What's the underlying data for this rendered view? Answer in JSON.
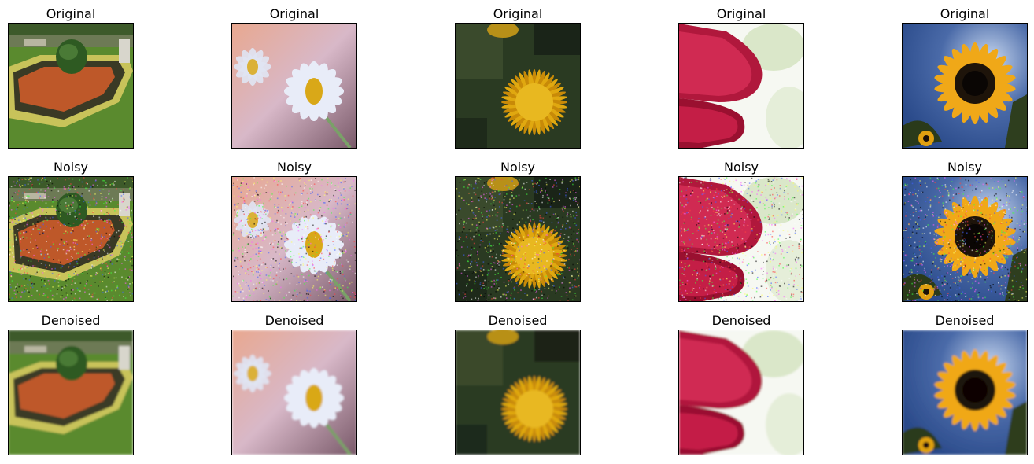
{
  "figure": {
    "row_titles": [
      "Original",
      "Noisy",
      "Denoised"
    ],
    "rows": [
      {
        "key": "original",
        "title": "Original"
      },
      {
        "key": "noisy",
        "title": "Noisy"
      },
      {
        "key": "denoised",
        "title": "Denoised"
      }
    ],
    "columns": [
      {
        "subject": "garden",
        "description": "topiary bush with flower beds and lawn"
      },
      {
        "subject": "daisy",
        "description": "white daisy with yellow center on soft pink background"
      },
      {
        "subject": "dandelion",
        "description": "yellow dandelion flower on dark green foliage"
      },
      {
        "subject": "red-petals",
        "description": "crimson petals against bright white background"
      },
      {
        "subject": "sunflower",
        "description": "sunflower against blue sky"
      }
    ],
    "colors": {
      "lawn": "#5a8a2e",
      "garden_flowers": "#e0602a",
      "daisy_petal": "#e8ecf8",
      "daisy_center": "#d9a818",
      "dandelion": "#e0a810",
      "red_petal": "#b0183c",
      "sunflower_petal": "#f0a818",
      "sky": "#4a6aa8"
    }
  }
}
